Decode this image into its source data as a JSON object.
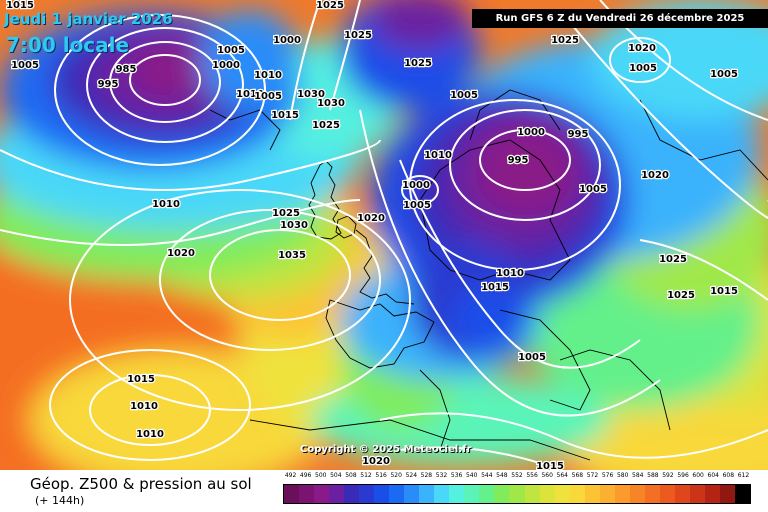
{
  "header": {
    "date_text": "Jeudi 1 janvier 2026",
    "time_text": "7:00 locale",
    "run_text": "Run GFS 6 Z du Vendredi 26 décembre 2025"
  },
  "footer": {
    "title": "Géop. Z500 & pression au sol",
    "subtitle": "(+ 144h)",
    "copyright": "Copyright © 2025 Meteociel.fr"
  },
  "scale": {
    "values": [
      "492",
      "496",
      "500",
      "504",
      "508",
      "512",
      "516",
      "520",
      "524",
      "528",
      "532",
      "536",
      "540",
      "544",
      "548",
      "552",
      "556",
      "560",
      "564",
      "568",
      "572",
      "576",
      "580",
      "584",
      "588",
      "592",
      "596",
      "600",
      "604",
      "608",
      "612"
    ],
    "colors": [
      "#6a0f5a",
      "#7a1470",
      "#8a1a88",
      "#6a20a0",
      "#3a2ab8",
      "#2a3ad0",
      "#1a4ee8",
      "#1a6af4",
      "#2a8cf8",
      "#3ab2fc",
      "#4ad8f8",
      "#54f0e0",
      "#5af4b8",
      "#64f08a",
      "#80ec5c",
      "#a0e848",
      "#c0e440",
      "#dce43c",
      "#f0e23c",
      "#f8d83a",
      "#fcc434",
      "#fcb030",
      "#fc9a2c",
      "#f88428",
      "#f46e24",
      "#ec5a20",
      "#e0461c",
      "#cc3418",
      "#b42414",
      "#901810",
      "#000000"
    ]
  },
  "pressure_labels": [
    "1015",
    "1025",
    "1005",
    "1000",
    "1005",
    "1025",
    "1025",
    "1000",
    "1005",
    "995",
    "985",
    "1030",
    "1010",
    "1005",
    "1010",
    "1030",
    "1025",
    "1015",
    "1025",
    "1000",
    "995",
    "1020",
    "1005",
    "1005",
    "1010",
    "995",
    "1000",
    "1005",
    "1025",
    "1030",
    "1020",
    "1010",
    "1010",
    "1035",
    "1020",
    "1015",
    "1015",
    "1005",
    "1010",
    "1025",
    "1020",
    "1025",
    "1010",
    "1005",
    "1015",
    "1020",
    "1015"
  ],
  "colors": {
    "header_text": "#2ec8f0",
    "isobar": "#ffffff",
    "coastline": "#000000"
  }
}
